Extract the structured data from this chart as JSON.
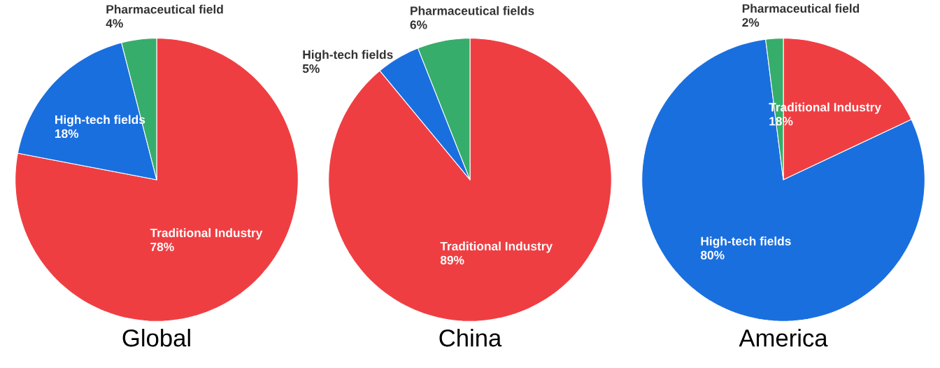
{
  "chart_data": [
    {
      "type": "pie",
      "title": "Global",
      "categories": [
        "Traditional Industry",
        "High-tech fields",
        "Pharmaceutical field"
      ],
      "values": [
        78,
        18,
        4
      ],
      "value_labels": [
        "78%",
        "18%",
        "4%"
      ],
      "colors": [
        "#ef3e42",
        "#1a6fdf",
        "#37ad6b"
      ]
    },
    {
      "type": "pie",
      "title": "China",
      "categories": [
        "Traditional Industry",
        "High-tech fields",
        "Pharmaceutical fields"
      ],
      "values": [
        89,
        5,
        6
      ],
      "value_labels": [
        "89%",
        "5%",
        "6%"
      ],
      "colors": [
        "#ef3e42",
        "#1a6fdf",
        "#37ad6b"
      ]
    },
    {
      "type": "pie",
      "title": "America",
      "categories": [
        "Traditional Industry",
        "High-tech fields",
        "Pharmaceutical field"
      ],
      "values": [
        18,
        80,
        2
      ],
      "value_labels": [
        "18%",
        "80%",
        "2%"
      ],
      "colors": [
        "#ef3e42",
        "#1a6fdf",
        "#37ad6b"
      ]
    }
  ]
}
